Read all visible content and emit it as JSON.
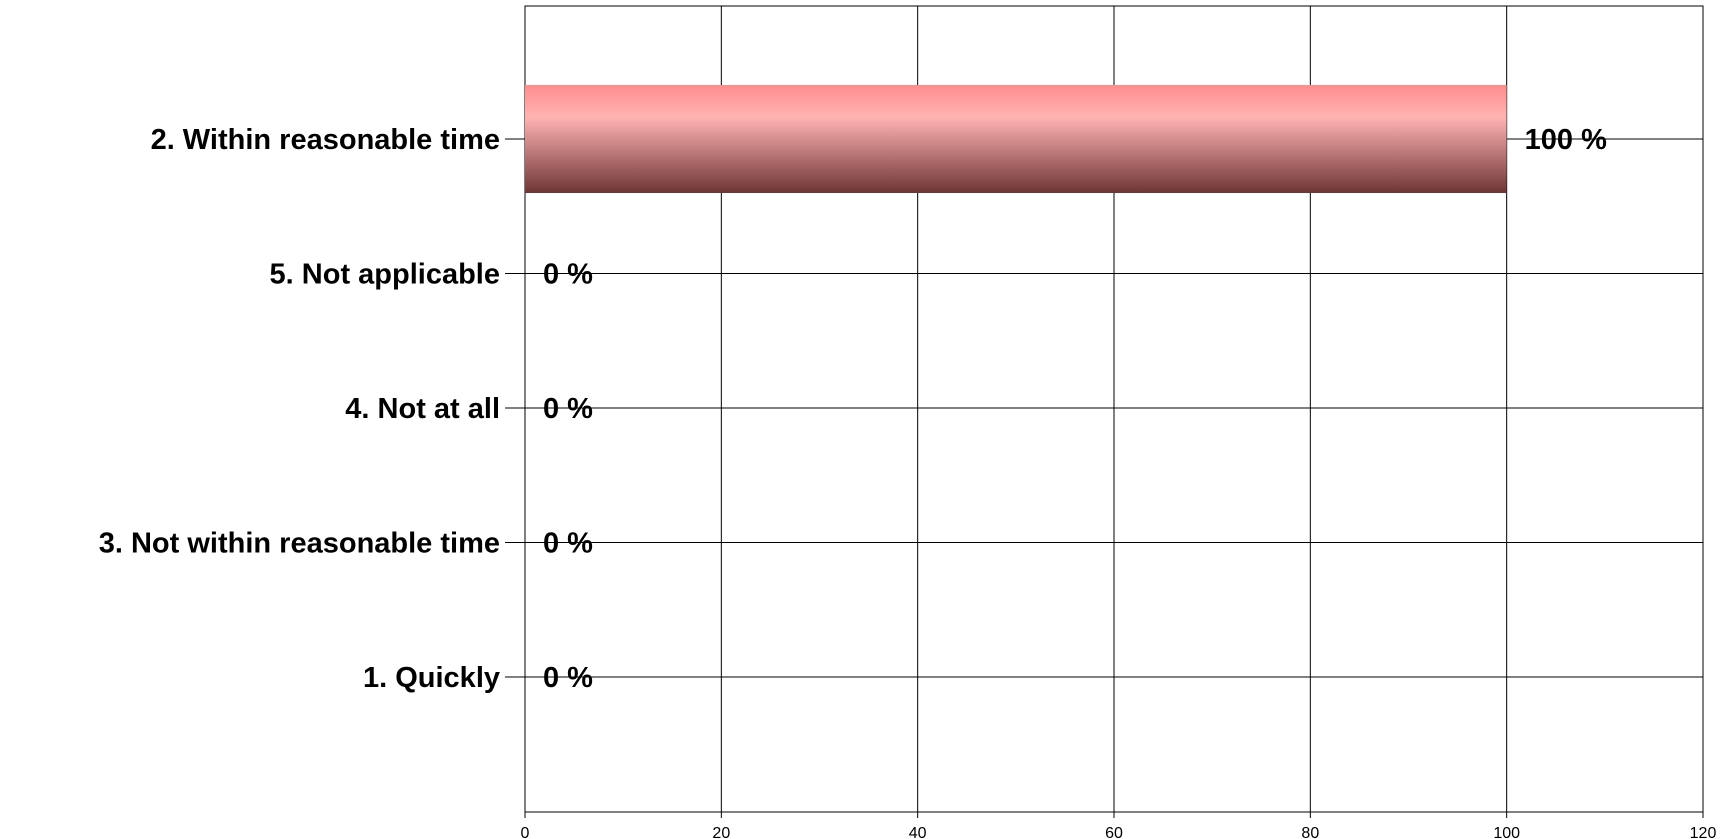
{
  "chart_data": {
    "type": "bar",
    "orientation": "horizontal",
    "categories": [
      "2. Within reasonable time",
      "5. Not applicable",
      "4. Not at all",
      "3. Not within reasonable time",
      "1. Quickly"
    ],
    "values": [
      100,
      0,
      0,
      0,
      0
    ],
    "data_labels": [
      "100 %",
      "0 %",
      "0 %",
      "0 %",
      "0 %"
    ],
    "xlim": [
      0,
      120
    ],
    "x_ticks": [
      0,
      20,
      40,
      60,
      80,
      100,
      120
    ],
    "grid": true,
    "colors": {
      "bar_top": "#ff8c8c",
      "bar_mid": "#ffb3b3",
      "bar_bottom": "#6e3535"
    }
  }
}
